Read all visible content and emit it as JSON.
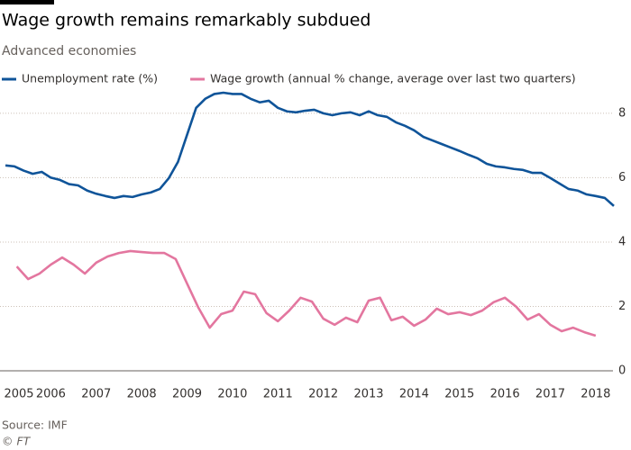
{
  "chart_data": {
    "type": "line",
    "title": "Wage growth remains remarkably subdued",
    "subtitle": "Advanced economies",
    "source": "Source: IMF",
    "credit": "© FT",
    "xlim": [
      2005.4,
      2018.9
    ],
    "xticks": [
      {
        "value": 2005.5,
        "label": "2005"
      },
      {
        "value": 2006.5,
        "label": "2006"
      },
      {
        "value": 2007.5,
        "label": "2007"
      },
      {
        "value": 2008.5,
        "label": "2008"
      },
      {
        "value": 2009.5,
        "label": "2009"
      },
      {
        "value": 2010.5,
        "label": "2010"
      },
      {
        "value": 2011.5,
        "label": "2011"
      },
      {
        "value": 2012.5,
        "label": "2012"
      },
      {
        "value": 2013.5,
        "label": "2013"
      },
      {
        "value": 2014.5,
        "label": "2014"
      },
      {
        "value": 2015.5,
        "label": "2015"
      },
      {
        "value": 2016.5,
        "label": "2016"
      },
      {
        "value": 2017.5,
        "label": "2017"
      },
      {
        "value": 2018.5,
        "label": "2018"
      }
    ],
    "ylim": [
      0,
      8.5
    ],
    "yticks": [
      0,
      2,
      4,
      6,
      8
    ],
    "grid": true,
    "series": [
      {
        "name": "Unemployment rate (%)",
        "color": "#0f5499",
        "x": [
          2005.5,
          2005.7,
          2005.9,
          2006.1,
          2006.3,
          2006.5,
          2006.7,
          2006.9,
          2007.1,
          2007.3,
          2007.5,
          2007.7,
          2007.9,
          2008.1,
          2008.3,
          2008.5,
          2008.7,
          2008.9,
          2009.1,
          2009.3,
          2009.5,
          2009.7,
          2009.9,
          2010.1,
          2010.3,
          2010.5,
          2010.7,
          2010.9,
          2011.1,
          2011.3,
          2011.5,
          2011.7,
          2011.9,
          2012.1,
          2012.3,
          2012.5,
          2012.7,
          2012.9,
          2013.1,
          2013.3,
          2013.5,
          2013.7,
          2013.9,
          2014.1,
          2014.3,
          2014.5,
          2014.7,
          2014.9,
          2015.1,
          2015.3,
          2015.5,
          2015.7,
          2015.9,
          2016.1,
          2016.3,
          2016.5,
          2016.7,
          2016.9,
          2017.1,
          2017.3,
          2017.5,
          2017.7,
          2017.9,
          2018.1,
          2018.3,
          2018.5,
          2018.7,
          2018.9
        ],
        "values": [
          6.38,
          6.35,
          6.22,
          6.12,
          6.18,
          6.0,
          5.93,
          5.8,
          5.76,
          5.6,
          5.5,
          5.43,
          5.37,
          5.43,
          5.4,
          5.48,
          5.54,
          5.65,
          5.99,
          6.49,
          7.33,
          8.17,
          8.45,
          8.6,
          8.64,
          8.6,
          8.6,
          8.45,
          8.34,
          8.39,
          8.17,
          8.06,
          8.03,
          8.08,
          8.11,
          8.0,
          7.94,
          8.0,
          8.03,
          7.94,
          8.06,
          7.94,
          7.89,
          7.72,
          7.61,
          7.47,
          7.27,
          7.16,
          7.05,
          6.94,
          6.83,
          6.71,
          6.6,
          6.43,
          6.35,
          6.32,
          6.27,
          6.24,
          6.15,
          6.15,
          5.99,
          5.82,
          5.65,
          5.6,
          5.48,
          5.43,
          5.37,
          5.12
        ]
      },
      {
        "name": "Wage growth (annual % change, average over last two quarters)",
        "color": "#e3769f",
        "x": [
          2005.75,
          2006.0,
          2006.25,
          2006.5,
          2006.75,
          2007.0,
          2007.25,
          2007.5,
          2007.75,
          2008.0,
          2008.25,
          2008.5,
          2008.75,
          2009.0,
          2009.25,
          2009.5,
          2009.75,
          2010.0,
          2010.25,
          2010.5,
          2010.75,
          2011.0,
          2011.25,
          2011.5,
          2011.75,
          2012.0,
          2012.25,
          2012.5,
          2012.75,
          2013.0,
          2013.25,
          2013.5,
          2013.75,
          2014.0,
          2014.25,
          2014.5,
          2014.75,
          2015.0,
          2015.25,
          2015.5,
          2015.75,
          2016.0,
          2016.25,
          2016.5,
          2016.75,
          2017.0,
          2017.25,
          2017.5,
          2017.75,
          2018.0,
          2018.25,
          2018.5
        ],
        "values": [
          3.24,
          2.85,
          3.02,
          3.3,
          3.52,
          3.3,
          3.02,
          3.36,
          3.55,
          3.66,
          3.72,
          3.69,
          3.66,
          3.66,
          3.47,
          2.71,
          1.96,
          1.34,
          1.76,
          1.87,
          2.46,
          2.38,
          1.79,
          1.54,
          1.87,
          2.27,
          2.15,
          1.62,
          1.43,
          1.65,
          1.51,
          2.18,
          2.27,
          1.57,
          1.68,
          1.4,
          1.59,
          1.93,
          1.76,
          1.82,
          1.73,
          1.87,
          2.13,
          2.27,
          1.99,
          1.59,
          1.76,
          1.43,
          1.23,
          1.34,
          1.2,
          1.09
        ]
      }
    ]
  }
}
